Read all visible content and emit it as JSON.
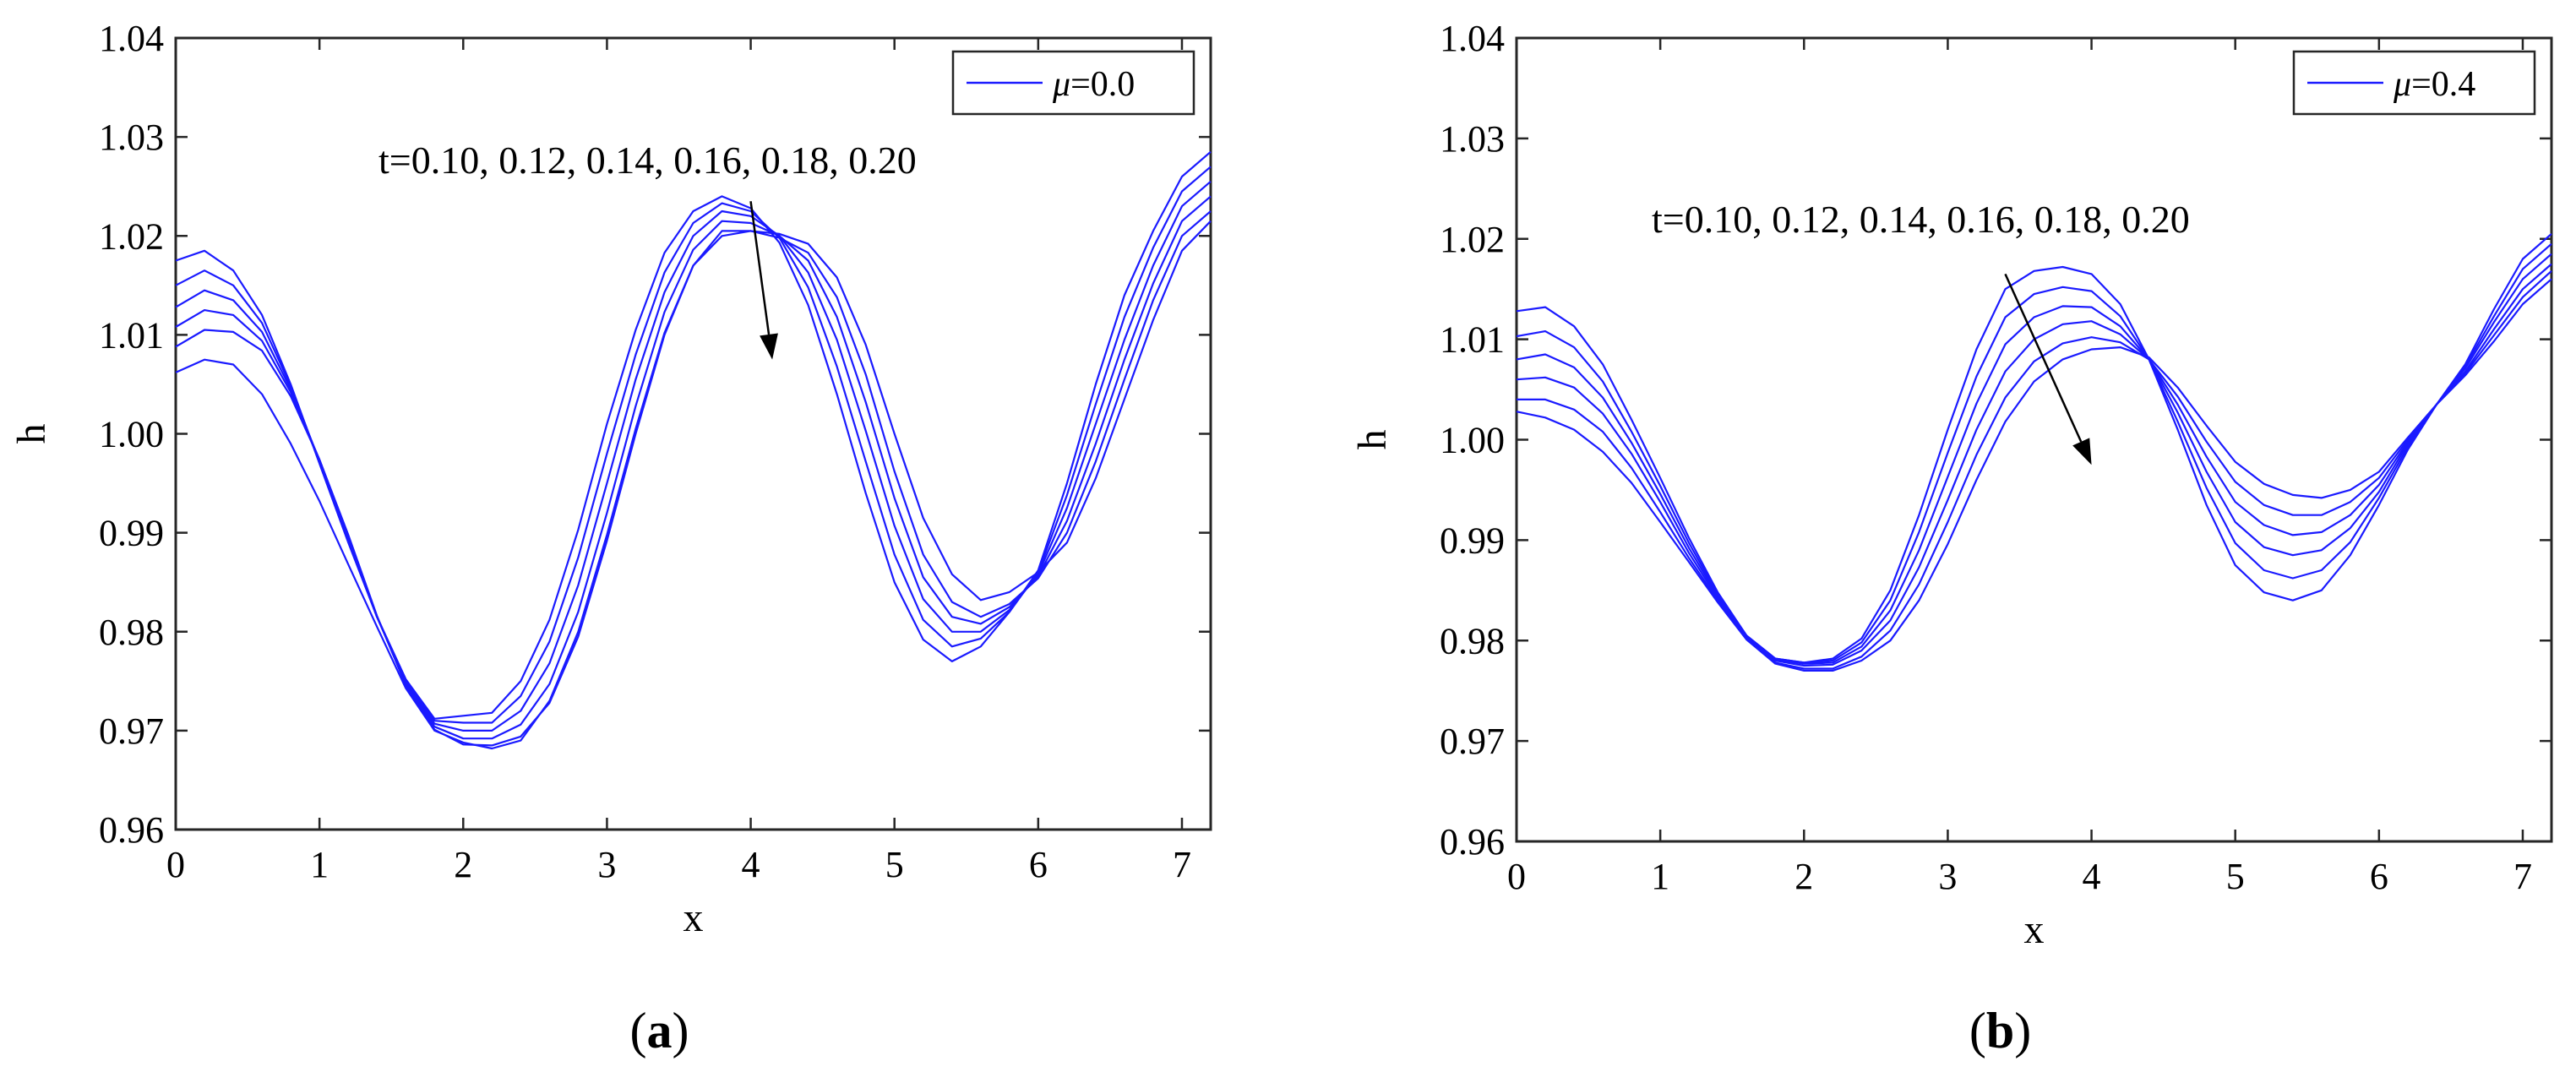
{
  "figure": {
    "layout": "two panels side by side"
  },
  "chart_data": [
    {
      "type": "line",
      "panel": "a",
      "caption": "a",
      "xlabel": "x",
      "ylabel": "h",
      "xlim": [
        0,
        7.2
      ],
      "ylim": [
        0.96,
        1.04
      ],
      "xticks": [
        "0",
        "1",
        "2",
        "3",
        "4",
        "5",
        "6",
        "7"
      ],
      "yticks": [
        "0.96",
        "0.97",
        "0.98",
        "0.99",
        "1.00",
        "1.01",
        "1.02",
        "1.03",
        "1.04"
      ],
      "legend": {
        "label_prefix": "μ",
        "label_value": "=0.0",
        "placement": "top-right"
      },
      "annotation": {
        "text": "t=0.10, 0.12, 0.14, 0.16, 0.18, 0.20",
        "arrow_from": [
          4.0,
          1.0235
        ],
        "arrow_to": [
          4.15,
          1.0075
        ]
      },
      "line_color": "#1a1aff",
      "x": [
        0,
        0.2,
        0.4,
        0.6,
        0.8,
        1.0,
        1.2,
        1.4,
        1.6,
        1.8,
        2.0,
        2.2,
        2.4,
        2.6,
        2.8,
        3.0,
        3.2,
        3.4,
        3.6,
        3.8,
        4.0,
        4.2,
        4.4,
        4.6,
        4.8,
        5.0,
        5.2,
        5.4,
        5.6,
        5.8,
        6.0,
        6.2,
        6.4,
        6.6,
        6.8,
        7.0,
        7.2
      ],
      "series": [
        {
          "name": "t=0.10",
          "values": [
            1.0175,
            1.0185,
            1.0165,
            1.012,
            1.005,
            0.997,
            0.989,
            0.9815,
            0.9752,
            0.9712,
            0.9715,
            0.9718,
            0.975,
            0.9812,
            0.9903,
            1.001,
            1.0105,
            1.0183,
            1.0225,
            1.024,
            1.0228,
            1.0193,
            1.013,
            1.004,
            0.994,
            0.985,
            0.9792,
            0.977,
            0.9785,
            0.982,
            0.9862,
            0.995,
            1.005,
            1.014,
            1.0205,
            1.026,
            1.0285
          ]
        },
        {
          "name": "t=0.12",
          "values": [
            1.015,
            1.0165,
            1.015,
            1.0112,
            1.0048,
            0.9972,
            0.9892,
            0.9815,
            0.9752,
            0.971,
            0.9708,
            0.9708,
            0.9735,
            0.979,
            0.9875,
            0.998,
            1.008,
            1.0163,
            1.0213,
            1.0233,
            1.0225,
            1.0198,
            1.0148,
            1.0068,
            0.9972,
            0.9878,
            0.9812,
            0.9785,
            0.9793,
            0.982,
            0.986,
            0.9938,
            1.003,
            1.0118,
            1.0188,
            1.0245,
            1.027
          ]
        },
        {
          "name": "t=0.14",
          "values": [
            1.0128,
            1.0145,
            1.0135,
            1.0103,
            1.0045,
            0.9973,
            0.9894,
            0.9815,
            0.975,
            0.9707,
            0.97,
            0.97,
            0.972,
            0.9768,
            0.9847,
            0.995,
            1.0055,
            1.0143,
            1.02,
            1.0225,
            1.022,
            1.02,
            1.0163,
            1.0095,
            1.0003,
            0.9907,
            0.9833,
            0.98,
            0.98,
            0.9822,
            0.9858,
            0.9925,
            1.001,
            1.0095,
            1.017,
            1.023,
            1.0255
          ]
        },
        {
          "name": "t=0.16",
          "values": [
            1.0108,
            1.0125,
            1.012,
            1.0094,
            1.0042,
            0.9974,
            0.9896,
            0.9815,
            0.9748,
            0.9704,
            0.9692,
            0.9692,
            0.9706,
            0.9747,
            0.982,
            0.992,
            1.0028,
            1.0123,
            1.0186,
            1.0215,
            1.0213,
            1.02,
            1.0175,
            1.0118,
            1.0032,
            0.9935,
            0.9855,
            0.9815,
            0.9808,
            0.9825,
            0.9856,
            0.9912,
            0.999,
            1.0075,
            1.0152,
            1.0215,
            1.024
          ]
        },
        {
          "name": "t=0.18",
          "values": [
            1.0088,
            1.0105,
            1.0103,
            1.0084,
            1.0038,
            0.9974,
            0.9898,
            0.9816,
            0.9746,
            0.9701,
            0.9686,
            0.9685,
            0.9694,
            0.9728,
            0.9795,
            0.9892,
            1.0,
            1.01,
            1.017,
            1.0205,
            1.0205,
            1.0198,
            1.0183,
            1.0138,
            1.006,
            0.9962,
            0.9878,
            0.983,
            0.9815,
            0.9828,
            0.9854,
            0.99,
            0.9972,
            1.0055,
            1.0135,
            1.02,
            1.0225
          ]
        },
        {
          "name": "t=0.20",
          "values": [
            1.0062,
            1.0075,
            1.007,
            1.004,
            0.999,
            0.9932,
            0.9868,
            0.9805,
            0.9743,
            0.97,
            0.9688,
            0.9682,
            0.969,
            0.973,
            0.98,
            0.9898,
            1.0005,
            1.0102,
            1.017,
            1.02,
            1.0205,
            1.0202,
            1.0192,
            1.0158,
            1.009,
            1.0,
            0.9915,
            0.9858,
            0.9832,
            0.984,
            0.986,
            0.989,
            0.9955,
            1.0035,
            1.0115,
            1.0185,
            1.0215
          ]
        }
      ]
    },
    {
      "type": "line",
      "panel": "b",
      "caption": "b",
      "xlabel": "x",
      "ylabel": "h",
      "xlim": [
        0,
        7.2
      ],
      "ylim": [
        0.96,
        1.04
      ],
      "xticks": [
        "0",
        "1",
        "2",
        "3",
        "4",
        "5",
        "6",
        "7"
      ],
      "yticks": [
        "0.96",
        "0.97",
        "0.98",
        "0.99",
        "1.00",
        "1.01",
        "1.02",
        "1.03",
        "1.04"
      ],
      "legend": {
        "label_prefix": "μ",
        "label_value": "=0.4",
        "placement": "top-right"
      },
      "annotation": {
        "text": "t=0.10, 0.12, 0.14, 0.16, 0.18, 0.20",
        "arrow_from": [
          3.4,
          1.0165
        ],
        "arrow_to": [
          4.0,
          0.9975
        ]
      },
      "line_color": "#1a1aff",
      "x": [
        0,
        0.2,
        0.4,
        0.6,
        0.8,
        1.0,
        1.2,
        1.4,
        1.6,
        1.8,
        2.0,
        2.2,
        2.4,
        2.6,
        2.8,
        3.0,
        3.2,
        3.4,
        3.6,
        3.8,
        4.0,
        4.2,
        4.4,
        4.6,
        4.8,
        5.0,
        5.2,
        5.4,
        5.6,
        5.8,
        6.0,
        6.2,
        6.4,
        6.6,
        6.8,
        7.0,
        7.2
      ],
      "series": [
        {
          "name": "t=0.10",
          "values": [
            1.0128,
            1.0132,
            1.0113,
            1.0075,
            1.002,
            0.9962,
            0.9902,
            0.9848,
            0.9805,
            0.9782,
            0.9778,
            0.9782,
            0.9802,
            0.985,
            0.9925,
            1.001,
            1.009,
            1.015,
            1.0168,
            1.0172,
            1.0165,
            1.0135,
            1.008,
            1.001,
            0.9935,
            0.9875,
            0.9848,
            0.984,
            0.985,
            0.9885,
            0.9935,
            0.999,
            1.0035,
            1.0075,
            1.013,
            1.018,
            1.0205
          ]
        },
        {
          "name": "t=0.12",
          "values": [
            1.0103,
            1.0108,
            1.0092,
            1.0058,
            1.0008,
            0.9954,
            0.9897,
            0.9846,
            0.9805,
            0.9782,
            0.9778,
            0.978,
            0.9798,
            0.984,
            0.9908,
            0.9987,
            1.0063,
            1.0122,
            1.0145,
            1.0152,
            1.0148,
            1.0123,
            1.008,
            1.0018,
            0.9952,
            0.9897,
            0.987,
            0.9862,
            0.987,
            0.9898,
            0.9942,
            0.9993,
            1.0035,
            1.0073,
            1.0123,
            1.017,
            1.0195
          ]
        },
        {
          "name": "t=0.14",
          "values": [
            1.008,
            1.0085,
            1.0072,
            1.0042,
            0.9997,
            0.9946,
            0.9892,
            0.9844,
            0.9804,
            0.9781,
            0.9777,
            0.9778,
            0.9794,
            0.983,
            0.989,
            0.9963,
            1.0036,
            1.0095,
            1.0122,
            1.0133,
            1.0132,
            1.0113,
            1.008,
            1.0027,
            0.9968,
            0.9918,
            0.9893,
            0.9885,
            0.989,
            0.9912,
            0.9948,
            0.9996,
            1.0035,
            1.0071,
            1.0117,
            1.016,
            1.0185
          ]
        },
        {
          "name": "t=0.16",
          "values": [
            1.006,
            1.0062,
            1.0052,
            1.0026,
            0.9986,
            0.9938,
            0.9887,
            0.9842,
            0.9803,
            0.978,
            0.9775,
            0.9776,
            0.979,
            0.982,
            0.9873,
            0.994,
            1.001,
            1.0068,
            1.01,
            1.0115,
            1.0118,
            1.0105,
            1.008,
            1.0035,
            0.9983,
            0.9938,
            0.9915,
            0.9905,
            0.9908,
            0.9925,
            0.9955,
            0.9998,
            1.0035,
            1.0068,
            1.011,
            1.015,
            1.0175
          ]
        },
        {
          "name": "t=0.18",
          "values": [
            1.004,
            1.004,
            1.003,
            1.0008,
            0.9972,
            0.9928,
            0.9882,
            0.984,
            0.9802,
            0.9778,
            0.9772,
            0.9772,
            0.9784,
            0.981,
            0.9856,
            0.9918,
            0.9985,
            1.0042,
            1.0078,
            1.0096,
            1.0102,
            1.0097,
            1.008,
            1.0043,
            0.9998,
            0.9958,
            0.9935,
            0.9925,
            0.9925,
            0.9938,
            0.9962,
            1.0,
            1.0035,
            1.0066,
            1.0104,
            1.0142,
            1.0168
          ]
        },
        {
          "name": "t=0.20",
          "values": [
            1.0028,
            1.0022,
            1.001,
            0.9988,
            0.9957,
            0.9918,
            0.9878,
            0.9838,
            0.9801,
            0.9777,
            0.977,
            0.977,
            0.978,
            0.98,
            0.984,
            0.9896,
            0.996,
            1.0018,
            1.0058,
            1.008,
            1.009,
            1.0092,
            1.0082,
            1.0052,
            1.0014,
            0.9978,
            0.9956,
            0.9945,
            0.9942,
            0.995,
            0.9968,
            1.0002,
            1.0035,
            1.0064,
            1.0098,
            1.0135,
            1.016
          ]
        }
      ]
    }
  ]
}
